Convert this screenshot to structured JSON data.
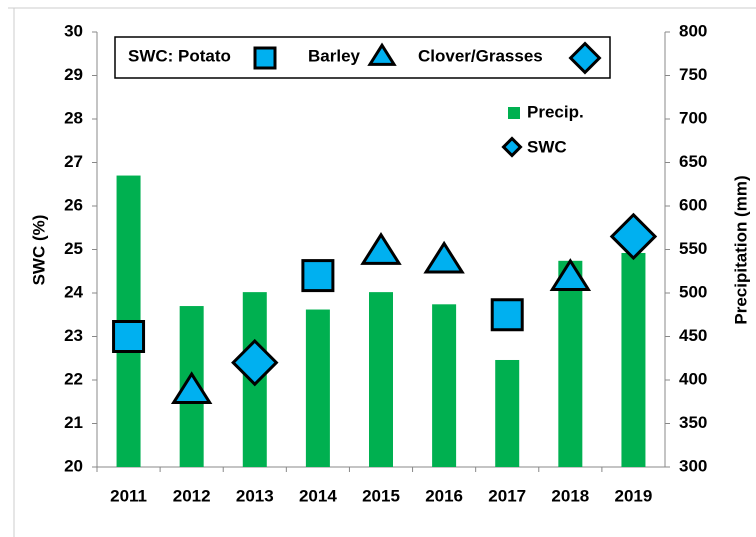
{
  "chart_data": {
    "type": "bar",
    "categories": [
      "2011",
      "2012",
      "2013",
      "2014",
      "2015",
      "2016",
      "2017",
      "2018",
      "2019"
    ],
    "ylabel": "SWC (%)",
    "y2label": "Precipitation  (mm)",
    "ylim": [
      20,
      30
    ],
    "yticks": [
      20,
      21,
      22,
      23,
      24,
      25,
      26,
      27,
      28,
      29,
      30
    ],
    "y2lim": [
      300,
      800
    ],
    "y2ticks": [
      300,
      350,
      400,
      450,
      500,
      550,
      600,
      650,
      700,
      750,
      800
    ],
    "series": [
      {
        "name": "Precip.",
        "type": "bar",
        "axis": "y2",
        "color": "#00b050",
        "values": [
          635,
          485,
          501,
          481,
          501,
          487,
          423,
          537,
          546
        ]
      },
      {
        "name": "SWC: Potato",
        "type": "scatter",
        "marker": "square",
        "color": "#00b0f0",
        "values": [
          23.0,
          null,
          null,
          24.4,
          null,
          null,
          23.5,
          null,
          null
        ]
      },
      {
        "name": "Barley",
        "type": "scatter",
        "marker": "triangle",
        "color": "#00b0f0",
        "values": [
          null,
          21.7,
          null,
          null,
          24.9,
          24.7,
          null,
          24.3,
          null
        ]
      },
      {
        "name": "Clover/Grasses",
        "type": "scatter",
        "marker": "diamond",
        "color": "#00b0f0",
        "values": [
          null,
          null,
          22.4,
          null,
          null,
          null,
          null,
          null,
          25.3
        ]
      }
    ],
    "marker_legend": "SWC"
  }
}
